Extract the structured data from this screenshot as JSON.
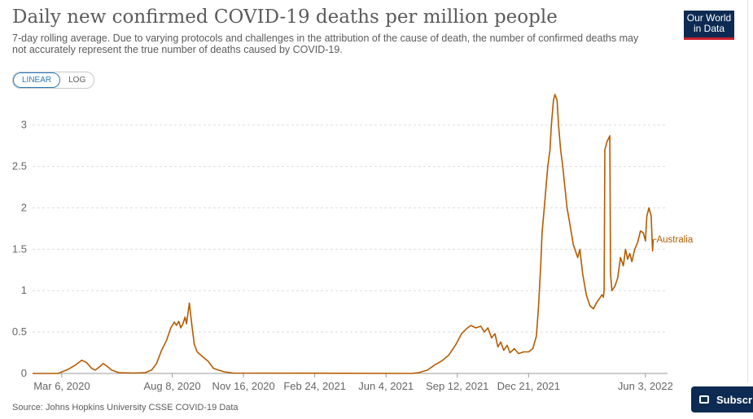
{
  "header": {
    "title": "Daily new confirmed COVID-19 deaths per million people",
    "subtitle": "7-day rolling average. Due to varying protocols and challenges in the attribution of the cause of death, the number of confirmed deaths may not accurately represent the true number of deaths caused by COVID-19.",
    "logo_line1": "Our World",
    "logo_line2": "in Data"
  },
  "toggle": {
    "linear_label": "LINEAR",
    "log_label": "LOG",
    "active": "LINEAR"
  },
  "footer": {
    "source": "Source: Johns Hopkins University CSSE COVID-19 Data",
    "subscribe_label": "Subscri"
  },
  "colors": {
    "line": "#b35c00",
    "grid": "#dddddd",
    "brand": "#0d2b52",
    "brand_accent": "#c8202f",
    "toggle_active": "#2a7ab8"
  },
  "chart_data": {
    "type": "line",
    "title": "Daily new confirmed COVID-19 deaths per million people",
    "ylim": [
      0,
      3.4
    ],
    "yticks": [
      0,
      0.5,
      1,
      1.5,
      2,
      2.5,
      3
    ],
    "ytick_labels": [
      "0",
      "0.5",
      "1",
      "1.5",
      "2",
      "2.5",
      "3"
    ],
    "xlim": [
      "2020-01-25",
      "2022-07-04"
    ],
    "xticks": [
      "2020-03-06",
      "2020-08-08",
      "2020-11-16",
      "2021-02-24",
      "2021-06-04",
      "2021-09-12",
      "2021-12-21",
      "2022-06-03"
    ],
    "xtick_labels": [
      "Mar 6, 2020",
      "Aug 8, 2020",
      "Nov 16, 2020",
      "Feb 24, 2021",
      "Jun 4, 2021",
      "Sep 12, 2021",
      "Dec 21, 2021",
      "Jun 3, 2022"
    ],
    "grid": true,
    "legend": "end-of-line label",
    "series": [
      {
        "name": "Australia",
        "color": "#b35c00",
        "points": [
          [
            "2020-01-25",
            0
          ],
          [
            "2020-03-01",
            0
          ],
          [
            "2020-03-15",
            0.05
          ],
          [
            "2020-03-25",
            0.1
          ],
          [
            "2020-04-03",
            0.16
          ],
          [
            "2020-04-10",
            0.13
          ],
          [
            "2020-04-17",
            0.06
          ],
          [
            "2020-04-22",
            0.04
          ],
          [
            "2020-04-28",
            0.08
          ],
          [
            "2020-05-03",
            0.12
          ],
          [
            "2020-05-08",
            0.09
          ],
          [
            "2020-05-15",
            0.04
          ],
          [
            "2020-05-25",
            0.01
          ],
          [
            "2020-06-15",
            0.005
          ],
          [
            "2020-07-01",
            0.01
          ],
          [
            "2020-07-10",
            0.04
          ],
          [
            "2020-07-17",
            0.12
          ],
          [
            "2020-07-24",
            0.28
          ],
          [
            "2020-07-31",
            0.4
          ],
          [
            "2020-08-06",
            0.55
          ],
          [
            "2020-08-11",
            0.62
          ],
          [
            "2020-08-14",
            0.58
          ],
          [
            "2020-08-17",
            0.63
          ],
          [
            "2020-08-20",
            0.55
          ],
          [
            "2020-08-23",
            0.6
          ],
          [
            "2020-08-26",
            0.68
          ],
          [
            "2020-08-28",
            0.6
          ],
          [
            "2020-08-30",
            0.72
          ],
          [
            "2020-09-01",
            0.85
          ],
          [
            "2020-09-03",
            0.7
          ],
          [
            "2020-09-05",
            0.55
          ],
          [
            "2020-09-08",
            0.35
          ],
          [
            "2020-09-12",
            0.26
          ],
          [
            "2020-09-20",
            0.2
          ],
          [
            "2020-09-27",
            0.15
          ],
          [
            "2020-10-05",
            0.06
          ],
          [
            "2020-10-12",
            0.04
          ],
          [
            "2020-10-20",
            0.02
          ],
          [
            "2020-11-01",
            0.005
          ],
          [
            "2021-07-10",
            0
          ],
          [
            "2021-07-20",
            0.01
          ],
          [
            "2021-08-01",
            0.04
          ],
          [
            "2021-08-11",
            0.1
          ],
          [
            "2021-08-21",
            0.15
          ],
          [
            "2021-08-31",
            0.22
          ],
          [
            "2021-09-10",
            0.35
          ],
          [
            "2021-09-18",
            0.48
          ],
          [
            "2021-09-25",
            0.54
          ],
          [
            "2021-10-01",
            0.58
          ],
          [
            "2021-10-08",
            0.55
          ],
          [
            "2021-10-15",
            0.57
          ],
          [
            "2021-10-20",
            0.5
          ],
          [
            "2021-10-25",
            0.55
          ],
          [
            "2021-10-30",
            0.43
          ],
          [
            "2021-11-04",
            0.48
          ],
          [
            "2021-11-08",
            0.32
          ],
          [
            "2021-11-12",
            0.38
          ],
          [
            "2021-11-16",
            0.28
          ],
          [
            "2021-11-21",
            0.34
          ],
          [
            "2021-11-25",
            0.25
          ],
          [
            "2021-12-01",
            0.3
          ],
          [
            "2021-12-07",
            0.24
          ],
          [
            "2021-12-14",
            0.26
          ],
          [
            "2021-12-21",
            0.26
          ],
          [
            "2021-12-27",
            0.3
          ],
          [
            "2022-01-01",
            0.45
          ],
          [
            "2022-01-04",
            0.8
          ],
          [
            "2022-01-07",
            1.3
          ],
          [
            "2022-01-09",
            1.7
          ],
          [
            "2022-01-12",
            2.0
          ],
          [
            "2022-01-14",
            2.2
          ],
          [
            "2022-01-17",
            2.5
          ],
          [
            "2022-01-20",
            2.7
          ],
          [
            "2022-01-22",
            3.0
          ],
          [
            "2022-01-25",
            3.3
          ],
          [
            "2022-01-27",
            3.37
          ],
          [
            "2022-01-30",
            3.3
          ],
          [
            "2022-02-01",
            3.0
          ],
          [
            "2022-02-04",
            2.7
          ],
          [
            "2022-02-07",
            2.5
          ],
          [
            "2022-02-10",
            2.25
          ],
          [
            "2022-02-13",
            2.0
          ],
          [
            "2022-02-17",
            1.8
          ],
          [
            "2022-02-22",
            1.55
          ],
          [
            "2022-02-28",
            1.4
          ],
          [
            "2022-03-03",
            1.5
          ],
          [
            "2022-03-07",
            1.2
          ],
          [
            "2022-03-12",
            0.95
          ],
          [
            "2022-03-17",
            0.82
          ],
          [
            "2022-03-22",
            0.78
          ],
          [
            "2022-03-26",
            0.85
          ],
          [
            "2022-03-30",
            0.9
          ],
          [
            "2022-04-03",
            0.95
          ],
          [
            "2022-04-05",
            0.92
          ],
          [
            "2022-04-06",
            1.0
          ],
          [
            "2022-04-07",
            2.7
          ],
          [
            "2022-04-10",
            2.8
          ],
          [
            "2022-04-13",
            2.85
          ],
          [
            "2022-04-14",
            2.87
          ],
          [
            "2022-04-15",
            1.2
          ],
          [
            "2022-04-17",
            1.0
          ],
          [
            "2022-04-21",
            1.05
          ],
          [
            "2022-04-25",
            1.15
          ],
          [
            "2022-04-29",
            1.4
          ],
          [
            "2022-05-03",
            1.3
          ],
          [
            "2022-05-06",
            1.5
          ],
          [
            "2022-05-09",
            1.38
          ],
          [
            "2022-05-12",
            1.45
          ],
          [
            "2022-05-15",
            1.35
          ],
          [
            "2022-05-19",
            1.5
          ],
          [
            "2022-05-23",
            1.58
          ],
          [
            "2022-05-27",
            1.72
          ],
          [
            "2022-05-31",
            1.7
          ],
          [
            "2022-06-03",
            1.6
          ],
          [
            "2022-06-05",
            1.9
          ],
          [
            "2022-06-08",
            2.0
          ],
          [
            "2022-06-11",
            1.9
          ],
          [
            "2022-06-13",
            1.48
          ],
          [
            "2022-06-14",
            1.62
          ]
        ]
      }
    ]
  }
}
